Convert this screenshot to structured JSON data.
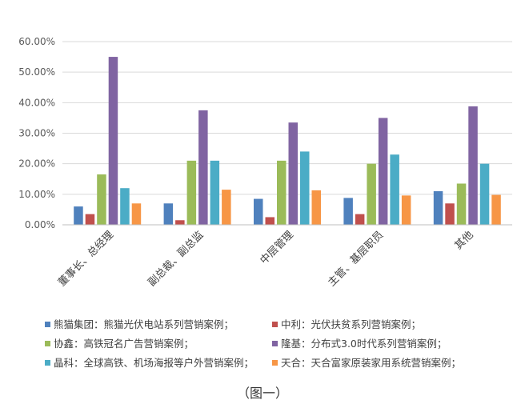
{
  "chart_data": {
    "type": "bar",
    "categories": [
      "董事长、总经理",
      "副总裁、副总监",
      "中层管理",
      "主管、基层职员",
      "其他"
    ],
    "y_tick_labels": [
      "0.00%",
      "10.00%",
      "20.00%",
      "30.00%",
      "40.00%",
      "50.00%",
      "60.00%"
    ],
    "ylim": [
      0,
      60
    ],
    "grid": true,
    "legend_position": "bottom",
    "series": [
      {
        "name": "熊猫集团：熊猫光伏电站系列营销案例；",
        "color": "#4f81bd",
        "values": [
          6.0,
          7.0,
          8.5,
          8.8,
          11.0
        ]
      },
      {
        "name": "中利：光伏扶贫系列营销案例；",
        "color": "#c0504d",
        "values": [
          3.5,
          1.5,
          2.5,
          3.5,
          7.0
        ]
      },
      {
        "name": "协鑫：高铁冠名广告营销案例；",
        "color": "#9bbb59",
        "values": [
          16.5,
          21.0,
          21.0,
          20.0,
          13.5
        ]
      },
      {
        "name": "隆基：分布式3.0时代系列营销案例；",
        "color": "#8064a2",
        "values": [
          55.0,
          37.5,
          33.5,
          35.0,
          38.8
        ]
      },
      {
        "name": "晶科：全球高铁、机场海报等户外营销案例；",
        "color": "#4bacc6",
        "values": [
          12.0,
          21.0,
          24.0,
          23.0,
          20.0
        ]
      },
      {
        "name": "天合：天合富家原装家用系统营销案例；",
        "color": "#f79646",
        "values": [
          7.0,
          11.5,
          11.3,
          9.6,
          9.8
        ]
      }
    ]
  },
  "caption": "（图一）"
}
